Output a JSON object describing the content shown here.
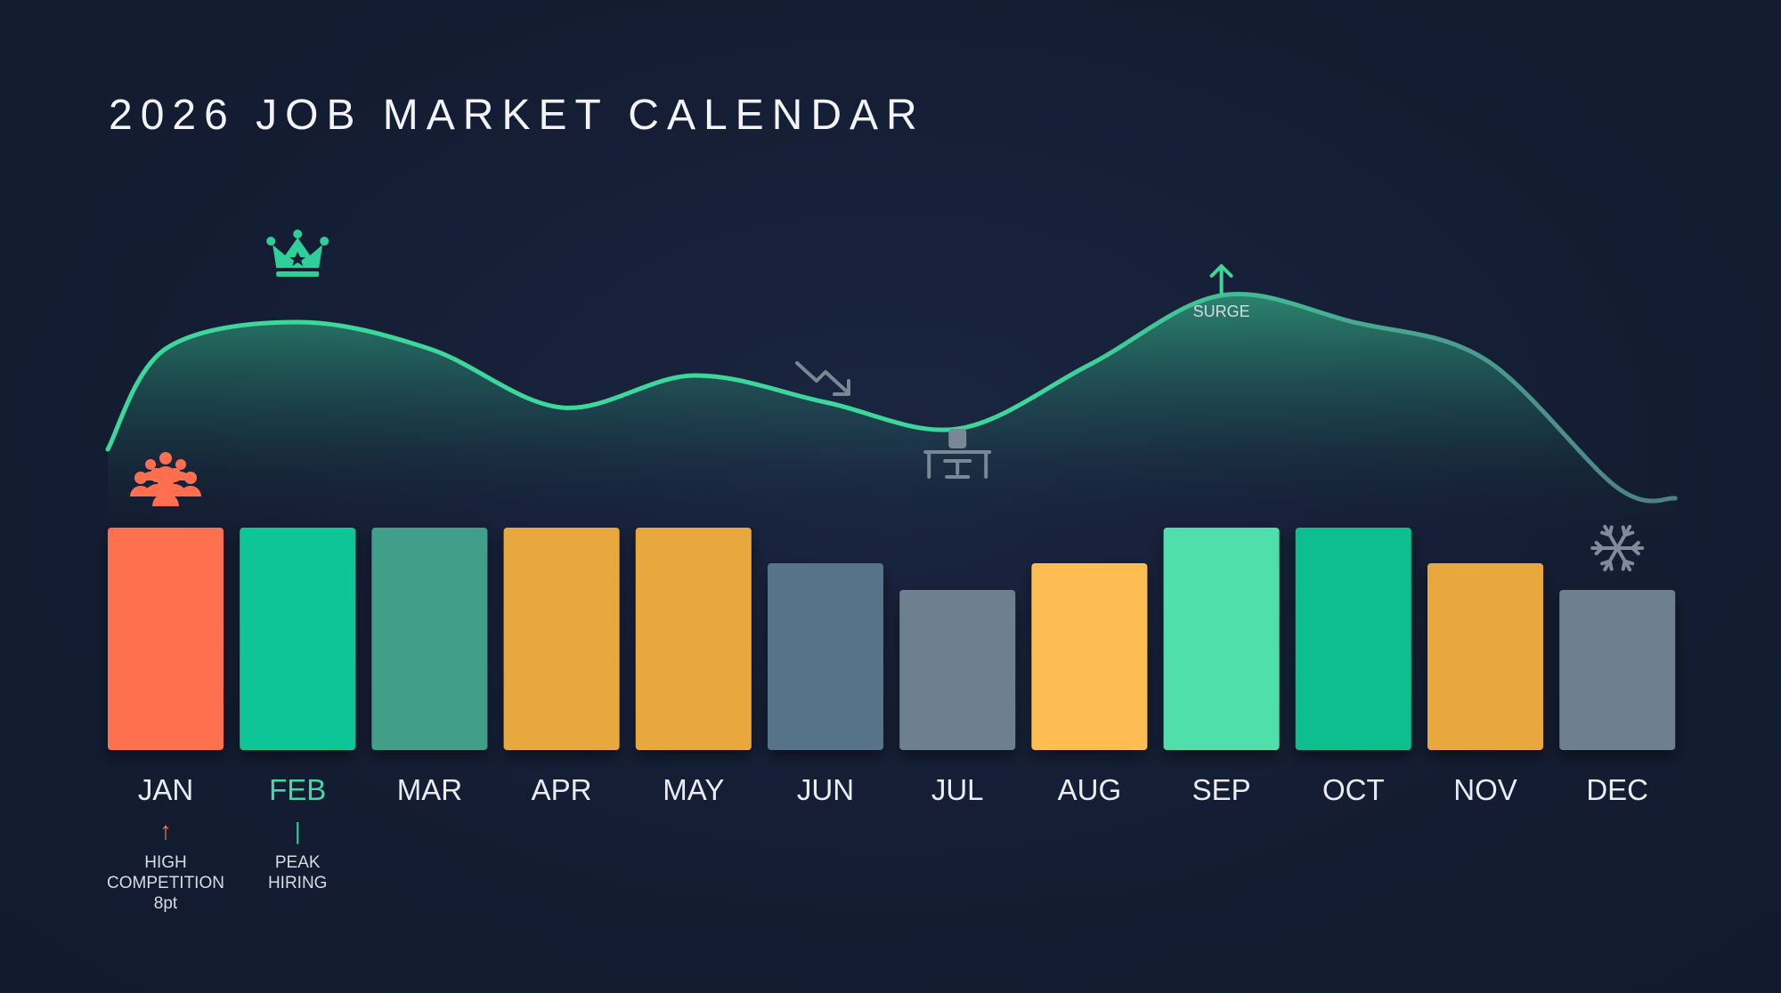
{
  "title": "2026 JOB MARKET CALENDAR",
  "colors": {
    "coral": "#ff6f4f",
    "green": "#10c596",
    "teal": "#3f9e89",
    "amber": "#e9a83d",
    "slate": "#56738a",
    "gray": "#6e7f90",
    "yellow": "#fdbd52",
    "mint": "#4fdfab",
    "curve": "#3dd69b"
  },
  "chart_data": {
    "type": "bar",
    "title": "2026 JOB MARKET CALENDAR",
    "categories": [
      "JAN",
      "FEB",
      "MAR",
      "APR",
      "MAY",
      "JUN",
      "JUL",
      "AUG",
      "SEP",
      "OCT",
      "NOV",
      "DEC"
    ],
    "values": [
      5,
      5,
      5,
      5,
      5,
      4.2,
      3.6,
      4.2,
      5,
      5,
      4.2,
      3.6
    ],
    "bar_colors": [
      "#ff6f4f",
      "#10c596",
      "#3f9e89",
      "#e9a83d",
      "#e9a83d",
      "#56738a",
      "#6e7f90",
      "#fdbd52",
      "#4fdfab",
      "#0fbf8f",
      "#e9a83d",
      "#6e7f90"
    ],
    "trend_values": [
      0.93,
      0.98,
      0.93,
      0.82,
      0.88,
      0.83,
      0.78,
      0.9,
      1.03,
      0.98,
      0.91,
      0.67
    ],
    "ylim": [
      0,
      5
    ],
    "xlabel": "",
    "ylabel": "",
    "grid": false,
    "annotations": [
      {
        "month": "JAN",
        "icon": "crowd-icon",
        "text": "HIGH COMPETITION",
        "subtext": "8pt",
        "marker": "↑",
        "color": "#ff6f4f"
      },
      {
        "month": "FEB",
        "icon": "crown-icon",
        "text": "PEAK HIRING",
        "subtext": "",
        "marker": "|",
        "color": "#2fcf99"
      },
      {
        "month": "JUN",
        "icon": "trend-down-icon",
        "text": "",
        "subtext": "",
        "marker": "",
        "color": "#7a8796"
      },
      {
        "month": "JUL",
        "icon": "empty-desk-icon",
        "text": "",
        "subtext": "",
        "marker": "",
        "color": "#7a8796"
      },
      {
        "month": "SEP",
        "icon": "arrow-up-icon",
        "text": "SURGE",
        "subtext": "",
        "marker": "",
        "color": "#3dd69b"
      },
      {
        "month": "DEC",
        "icon": "snowflake-icon",
        "text": "",
        "subtext": "",
        "marker": "",
        "color": "#7f8c9a"
      }
    ]
  }
}
